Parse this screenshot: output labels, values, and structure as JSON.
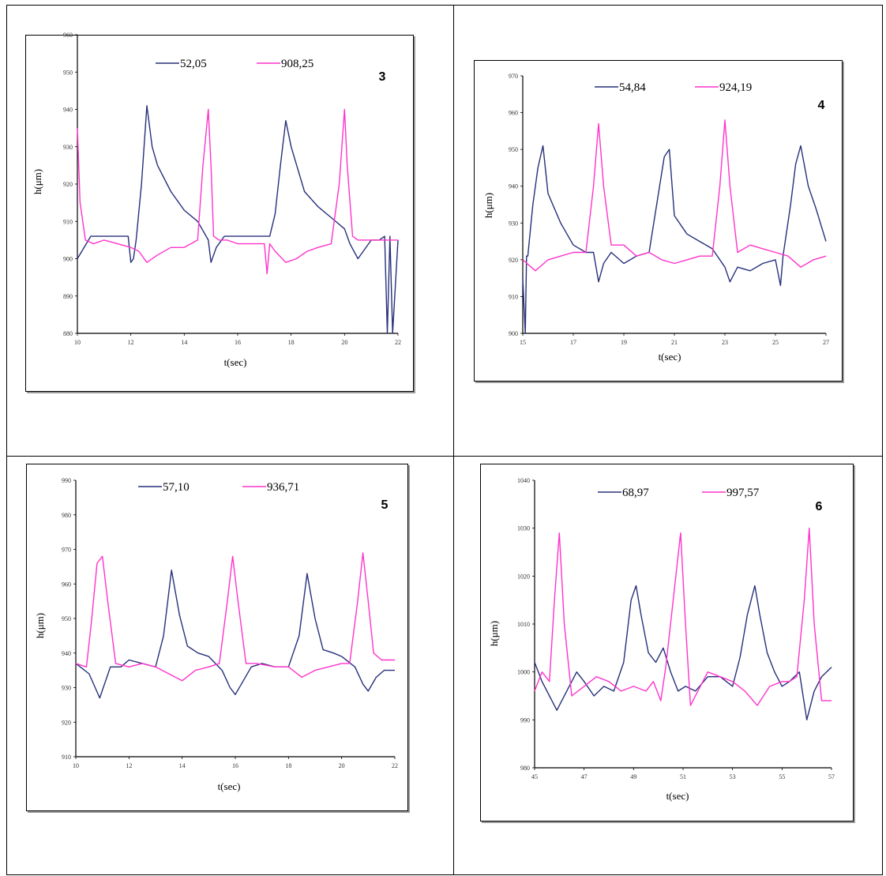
{
  "colors": {
    "series_a": "#26307a",
    "series_b": "#ff33cc"
  },
  "chart_data": [
    {
      "type": "line",
      "panel_number": "3",
      "xlabel": "t(sec)",
      "ylabel": "h(μm)",
      "xlim": [
        10,
        22
      ],
      "ylim": [
        880,
        960
      ],
      "xticks": [
        "10",
        "12",
        "14",
        "16",
        "18",
        "20",
        "22"
      ],
      "yticks": [
        "880",
        "890",
        "900",
        "910",
        "920",
        "930",
        "940",
        "950",
        "960"
      ],
      "series": [
        {
          "name": "52,05",
          "x": [
            10,
            10.5,
            11,
            11.5,
            11.9,
            12,
            12.1,
            12.2,
            12.4,
            12.6,
            12.8,
            13,
            13.5,
            14,
            14.5,
            14.9,
            15,
            15.2,
            15.5,
            16,
            16.5,
            17,
            17.2,
            17.4,
            17.6,
            17.8,
            18,
            18.5,
            19,
            19.5,
            20,
            20.2,
            20.5,
            21,
            21.3,
            21.5,
            21.6,
            21.7,
            21.8,
            22
          ],
          "y": [
            900,
            906,
            906,
            906,
            906,
            899,
            900,
            905,
            920,
            941,
            930,
            925,
            918,
            913,
            910,
            905,
            899,
            903,
            906,
            906,
            906,
            906,
            906,
            912,
            925,
            937,
            930,
            918,
            914,
            911,
            908,
            904,
            900,
            905,
            905,
            906,
            880,
            906,
            880,
            905
          ]
        },
        {
          "name": "908,25",
          "x": [
            10,
            10.1,
            10.3,
            10.6,
            11,
            11.5,
            12,
            12.3,
            12.6,
            13,
            13.5,
            14,
            14.5,
            14.7,
            14.9,
            15,
            15.1,
            15.3,
            15.6,
            16,
            16.5,
            17,
            17.1,
            17.2,
            17.4,
            17.8,
            18.2,
            18.6,
            19,
            19.5,
            19.8,
            20,
            20.1,
            20.3,
            20.5,
            21,
            21.5,
            22
          ],
          "y": [
            935,
            915,
            905,
            904,
            905,
            904,
            903,
            902,
            899,
            901,
            903,
            903,
            905,
            925,
            940,
            925,
            906,
            905,
            905,
            904,
            904,
            904,
            896,
            904,
            902,
            899,
            900,
            902,
            903,
            904,
            920,
            940,
            925,
            906,
            905,
            905,
            905,
            905
          ]
        }
      ]
    },
    {
      "type": "line",
      "panel_number": "4",
      "xlabel": "t(sec)",
      "ylabel": "h(μm)",
      "xlim": [
        15,
        27
      ],
      "ylim": [
        900,
        970
      ],
      "xticks": [
        "15",
        "17",
        "19",
        "21",
        "23",
        "25",
        "27"
      ],
      "yticks": [
        "900",
        "910",
        "920",
        "930",
        "940",
        "950",
        "960",
        "970"
      ],
      "series": [
        {
          "name": "54,84",
          "x": [
            15,
            15.1,
            15.15,
            15.2,
            15.4,
            15.6,
            15.8,
            16,
            16.5,
            17,
            17.5,
            17.8,
            18,
            18.2,
            18.5,
            19,
            19.5,
            20,
            20.3,
            20.6,
            20.8,
            21,
            21.5,
            22,
            22.5,
            23,
            23.2,
            23.5,
            24,
            24.5,
            25,
            25.2,
            25.3,
            25.6,
            25.8,
            26,
            26.3,
            26.6,
            27
          ],
          "y": [
            915,
            900,
            921,
            921,
            935,
            945,
            951,
            938,
            930,
            924,
            922,
            922,
            914,
            919,
            922,
            919,
            921,
            922,
            935,
            948,
            950,
            932,
            927,
            925,
            923,
            918,
            914,
            918,
            917,
            919,
            920,
            913,
            921,
            935,
            946,
            951,
            940,
            934,
            925
          ]
        },
        {
          "name": "924,19",
          "x": [
            15,
            15.5,
            16,
            16.5,
            17,
            17.5,
            17.8,
            18,
            18.2,
            18.5,
            19,
            19.5,
            20,
            20.5,
            21,
            21.5,
            22,
            22.5,
            22.8,
            23,
            23.2,
            23.5,
            24,
            24.5,
            25,
            25.5,
            26,
            26.5,
            27
          ],
          "y": [
            920,
            917,
            920,
            921,
            922,
            922,
            940,
            957,
            940,
            924,
            924,
            921,
            922,
            920,
            919,
            920,
            921,
            921,
            940,
            958,
            940,
            922,
            924,
            923,
            922,
            921,
            918,
            920,
            921
          ]
        }
      ]
    },
    {
      "type": "line",
      "panel_number": "5",
      "xlabel": "t(sec)",
      "ylabel": "h(μm)",
      "xlim": [
        10,
        22
      ],
      "ylim": [
        910,
        990
      ],
      "xticks": [
        "10",
        "12",
        "14",
        "16",
        "18",
        "20",
        "22"
      ],
      "yticks": [
        "910",
        "920",
        "930",
        "940",
        "950",
        "960",
        "970",
        "980",
        "990"
      ],
      "series": [
        {
          "name": "57,10",
          "x": [
            10,
            10.5,
            10.9,
            11.3,
            11.7,
            12,
            12.5,
            13,
            13.3,
            13.6,
            13.9,
            14.2,
            14.6,
            15,
            15.5,
            15.8,
            16,
            16.3,
            16.6,
            17,
            17.5,
            18,
            18.4,
            18.7,
            19,
            19.3,
            19.7,
            20,
            20.5,
            20.8,
            21,
            21.3,
            21.6,
            22
          ],
          "y": [
            937,
            934,
            927,
            936,
            936,
            938,
            937,
            936,
            945,
            964,
            951,
            942,
            940,
            939,
            935,
            930,
            928,
            932,
            936,
            937,
            936,
            936,
            945,
            963,
            950,
            941,
            940,
            939,
            936,
            931,
            929,
            933,
            935,
            935
          ]
        },
        {
          "name": "936,71",
          "x": [
            10,
            10.4,
            10.6,
            10.8,
            11,
            11.2,
            11.5,
            12,
            12.5,
            13,
            13.5,
            14,
            14.5,
            15,
            15.4,
            15.7,
            15.9,
            16.1,
            16.4,
            16.8,
            17.5,
            18,
            18.5,
            19,
            19.5,
            20,
            20.3,
            20.6,
            20.8,
            21,
            21.2,
            21.5,
            22
          ],
          "y": [
            937,
            936,
            950,
            966,
            968,
            955,
            937,
            936,
            937,
            936,
            934,
            932,
            935,
            936,
            937,
            955,
            968,
            955,
            937,
            937,
            936,
            936,
            933,
            935,
            936,
            937,
            937,
            955,
            969,
            955,
            940,
            938,
            938
          ]
        }
      ]
    },
    {
      "type": "line",
      "panel_number": "6",
      "xlabel": "t(sec)",
      "ylabel": "h(μm)",
      "xlim": [
        45,
        57
      ],
      "ylim": [
        980,
        1040
      ],
      "xticks": [
        "45",
        "47",
        "49",
        "51",
        "53",
        "55",
        "57"
      ],
      "yticks": [
        "980",
        "990",
        "1000",
        "1010",
        "1020",
        "1030",
        "1040"
      ],
      "series": [
        {
          "name": "68,97",
          "x": [
            45,
            45.3,
            45.6,
            45.9,
            46.3,
            46.7,
            47,
            47.4,
            47.8,
            48.2,
            48.6,
            48.9,
            49.1,
            49.3,
            49.6,
            49.9,
            50.2,
            50.5,
            50.8,
            51.1,
            51.5,
            52,
            52.5,
            53,
            53.3,
            53.6,
            53.9,
            54.1,
            54.4,
            54.7,
            55,
            55.3,
            55.7,
            56,
            56.3,
            56.6,
            57
          ],
          "y": [
            1002,
            998,
            995,
            992,
            996,
            1000,
            998,
            995,
            997,
            996,
            1002,
            1015,
            1018,
            1012,
            1004,
            1002,
            1005,
            1000,
            996,
            997,
            996,
            999,
            999,
            997,
            1003,
            1012,
            1018,
            1012,
            1004,
            1000,
            997,
            998,
            1000,
            990,
            996,
            999,
            1001
          ]
        },
        {
          "name": "997,57",
          "x": [
            45,
            45.3,
            45.6,
            45.8,
            46,
            46.2,
            46.5,
            47,
            47.5,
            48,
            48.5,
            49,
            49.5,
            49.8,
            50.1,
            50.3,
            50.6,
            50.9,
            51.1,
            51.3,
            51.6,
            52,
            52.5,
            53,
            53.5,
            54,
            54.5,
            55,
            55.3,
            55.6,
            55.9,
            56.1,
            56.3,
            56.6,
            57
          ],
          "y": [
            996,
            1000,
            998,
            1015,
            1029,
            1010,
            995,
            997,
            999,
            998,
            996,
            997,
            996,
            998,
            994,
            1001,
            1015,
            1029,
            1010,
            993,
            996,
            1000,
            999,
            998,
            996,
            993,
            997,
            998,
            998,
            999,
            1015,
            1030,
            1010,
            994,
            994
          ]
        }
      ]
    }
  ]
}
